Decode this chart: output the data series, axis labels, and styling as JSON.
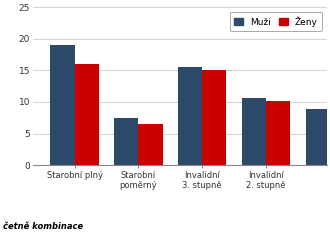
{
  "categories_display": [
    "Starobní plný",
    "Starobní\npoměrný",
    "Invalidní\n3. stupně",
    "Invalidní\n2. stupně"
  ],
  "muzi": [
    19.0,
    7.4,
    15.6,
    10.6
  ],
  "zeny": [
    16.0,
    6.5,
    15.0,
    10.1
  ],
  "muzi_partial": 8.9,
  "color_muzi": "#2E4A6B",
  "color_zeny": "#CC0000",
  "ylim": [
    0,
    25
  ],
  "yticks": [
    0,
    5,
    10,
    15,
    20,
    25
  ],
  "legend_muzi": "Muži",
  "legend_zeny": "Ženy",
  "footer_text": "četně kombinace",
  "bar_width": 0.38
}
